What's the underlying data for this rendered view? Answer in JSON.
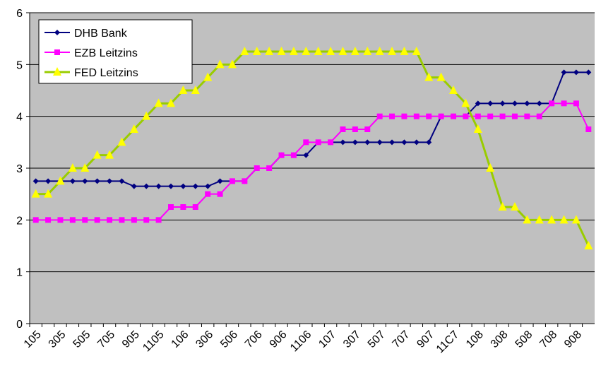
{
  "chart_data": {
    "type": "line",
    "categories": [
      "105",
      null,
      "305",
      null,
      "505",
      null,
      "705",
      null,
      "905",
      null,
      "1105",
      null,
      "106",
      null,
      "306",
      null,
      "506",
      null,
      "706",
      null,
      "906",
      null,
      "1106",
      null,
      "107",
      null,
      "307",
      null,
      "507",
      null,
      "707",
      null,
      "907",
      null,
      "11C7",
      null,
      "108",
      null,
      "308",
      null,
      "508",
      null,
      "708",
      null,
      "908",
      null
    ],
    "series": [
      {
        "name": "DHB Bank",
        "color": "#000080",
        "marker": "diamond",
        "values": [
          2.75,
          2.75,
          2.75,
          2.75,
          2.75,
          2.75,
          2.75,
          2.75,
          2.65,
          2.65,
          2.65,
          2.65,
          2.65,
          2.65,
          2.65,
          2.75,
          2.75,
          2.75,
          3.0,
          3.0,
          3.25,
          3.25,
          3.25,
          3.5,
          3.5,
          3.5,
          3.5,
          3.5,
          3.5,
          3.5,
          3.5,
          3.5,
          3.5,
          4.0,
          4.0,
          4.0,
          4.25,
          4.25,
          4.25,
          4.25,
          4.25,
          4.25,
          4.25,
          4.85,
          4.85,
          4.85
        ]
      },
      {
        "name": "EZB Leitzins",
        "color": "#ff00ff",
        "marker": "square",
        "values": [
          2.0,
          2.0,
          2.0,
          2.0,
          2.0,
          2.0,
          2.0,
          2.0,
          2.0,
          2.0,
          2.0,
          2.25,
          2.25,
          2.25,
          2.5,
          2.5,
          2.75,
          2.75,
          3.0,
          3.0,
          3.25,
          3.25,
          3.5,
          3.5,
          3.5,
          3.75,
          3.75,
          3.75,
          4.0,
          4.0,
          4.0,
          4.0,
          4.0,
          4.0,
          4.0,
          4.0,
          4.0,
          4.0,
          4.0,
          4.0,
          4.0,
          4.0,
          4.25,
          4.25,
          4.25,
          3.75
        ]
      },
      {
        "name": "FED Leitzins",
        "color": "#99cc00",
        "marker_color": "#ffff00",
        "marker": "triangle",
        "values": [
          2.5,
          2.5,
          2.75,
          3.0,
          3.0,
          3.25,
          3.25,
          3.5,
          3.75,
          4.0,
          4.25,
          4.25,
          4.5,
          4.5,
          4.75,
          5.0,
          5.0,
          5.25,
          5.25,
          5.25,
          5.25,
          5.25,
          5.25,
          5.25,
          5.25,
          5.25,
          5.25,
          5.25,
          5.25,
          5.25,
          5.25,
          5.25,
          4.75,
          4.75,
          4.5,
          4.25,
          3.75,
          3.0,
          2.25,
          2.25,
          2.0,
          2.0,
          2.0,
          2.0,
          2.0,
          1.5
        ]
      }
    ],
    "ylim": [
      0,
      6
    ],
    "yticks": [
      0,
      1,
      2,
      3,
      4,
      5,
      6
    ],
    "grid": true,
    "legend": "top-left",
    "background": "#c0c0c0"
  }
}
